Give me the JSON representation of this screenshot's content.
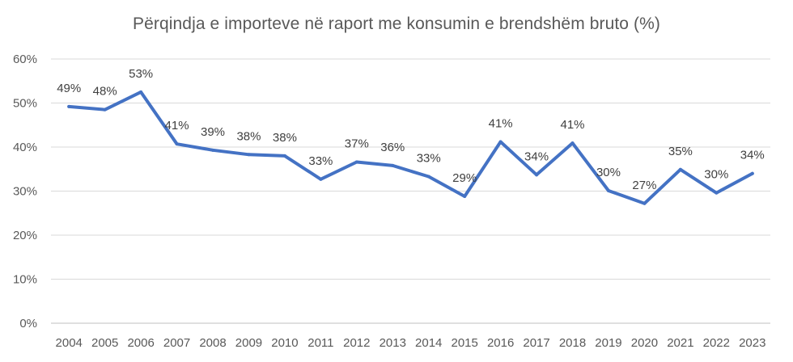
{
  "chart_data": {
    "type": "line",
    "title": "Përqindja e importeve në raport me konsumin e brendshëm bruto (%)",
    "xlabel": "",
    "ylabel": "",
    "categories": [
      "2004",
      "2005",
      "2006",
      "2007",
      "2008",
      "2009",
      "2010",
      "2011",
      "2012",
      "2013",
      "2014",
      "2015",
      "2016",
      "2017",
      "2018",
      "2019",
      "2020",
      "2021",
      "2022",
      "2023"
    ],
    "series": [
      {
        "values": [
          49.2,
          48.5,
          52.5,
          40.7,
          39.3,
          38.3,
          38.0,
          32.7,
          36.6,
          35.8,
          33.3,
          28.8,
          41.2,
          33.7,
          40.9,
          30.1,
          27.2,
          34.9,
          29.6,
          34.0
        ],
        "labels": [
          "49%",
          "48%",
          "53%",
          "41%",
          "39%",
          "38%",
          "38%",
          "33%",
          "37%",
          "36%",
          "33%",
          "29%",
          "41%",
          "34%",
          "41%",
          "30%",
          "27%",
          "35%",
          "30%",
          "34%"
        ]
      }
    ],
    "ylim": [
      0,
      60
    ],
    "yticks": [
      0,
      10,
      20,
      30,
      40,
      50,
      60
    ],
    "ytick_labels": [
      "0%",
      "10%",
      "20%",
      "30%",
      "40%",
      "50%",
      "60%"
    ],
    "grid": true,
    "legend": "none",
    "colors": {
      "line": "#4472C4",
      "grid": "#D9D9D9",
      "text": "#595959",
      "label": "#404040"
    }
  }
}
